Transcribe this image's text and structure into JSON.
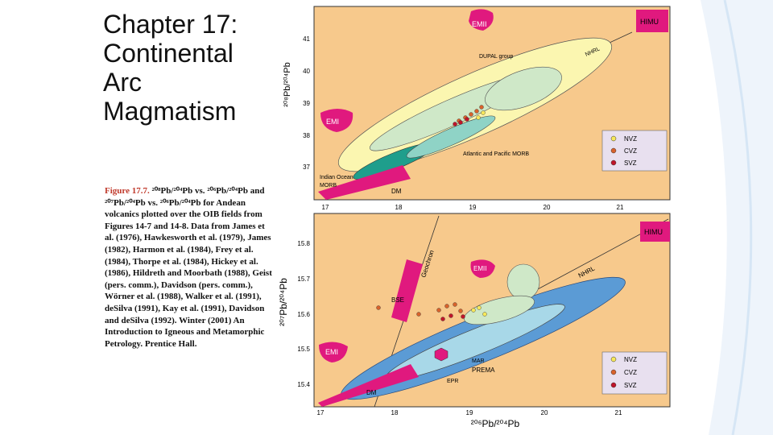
{
  "slide": {
    "title_lines": [
      "Chapter 17:",
      "Continental",
      "Arc",
      "Magmatism"
    ],
    "caption": {
      "label": "Figure 17.7.",
      "text": "²⁰⁸Pb/²⁰⁴Pb vs. ²⁰⁶Pb/²⁰⁴Pb and ²⁰⁷Pb/²⁰⁴Pb vs. ²⁰⁶Pb/²⁰⁴Pb for Andean volcanics plotted over the OIB fields from Figures 14-7 and 14-8. Data from James et al. (1976), Hawkesworth et al. (1979), James (1982), Harmon et al. (1984), Frey et al. (1984), Thorpe et al. (1984), Hickey et al. (1986), Hildreth and Moorbath (1988), Geist (pers. comm.), Davidson (pers. comm.), Wörner et al. (1988), Walker et al. (1991), deSilva (1991), Kay et al. (1991), Davidson and deSilva (1992). Winter (2001) An Introduction to Igneous and Metamorphic Petrology. Prentice Hall."
    },
    "figure": {
      "top": {
        "y_label": "²⁰⁸Pb/²⁰⁴Pb",
        "y_ticks": [
          "41",
          "40",
          "39",
          "38",
          "37"
        ],
        "x_ticks": [
          "17",
          "18",
          "19",
          "20",
          "21"
        ],
        "labels": [
          "EMII",
          "HIMU",
          "DUPAL group",
          "NHRL",
          "EMI",
          "Atlantic and Pacific MORB",
          "Indian Ocean",
          "MORB",
          "DM"
        ],
        "legend": [
          "NVZ",
          "CVZ",
          "SVZ"
        ]
      },
      "bottom": {
        "y_label": "²⁰⁷Pb/²⁰⁴Pb",
        "y_ticks": [
          "15.8",
          "15.7",
          "15.6",
          "15.5",
          "15.4"
        ],
        "x_ticks": [
          "17",
          "18",
          "19",
          "20",
          "21"
        ],
        "x_label": "²⁰⁶Pb/²⁰⁴Pb",
        "labels": [
          "HIMU",
          "Geochron",
          "EMII",
          "NHRL",
          "BSE",
          "EMI",
          "MAR",
          "PREMA",
          "EPR",
          "DM"
        ],
        "legend": [
          "NVZ",
          "CVZ",
          "SVZ"
        ]
      }
    }
  }
}
